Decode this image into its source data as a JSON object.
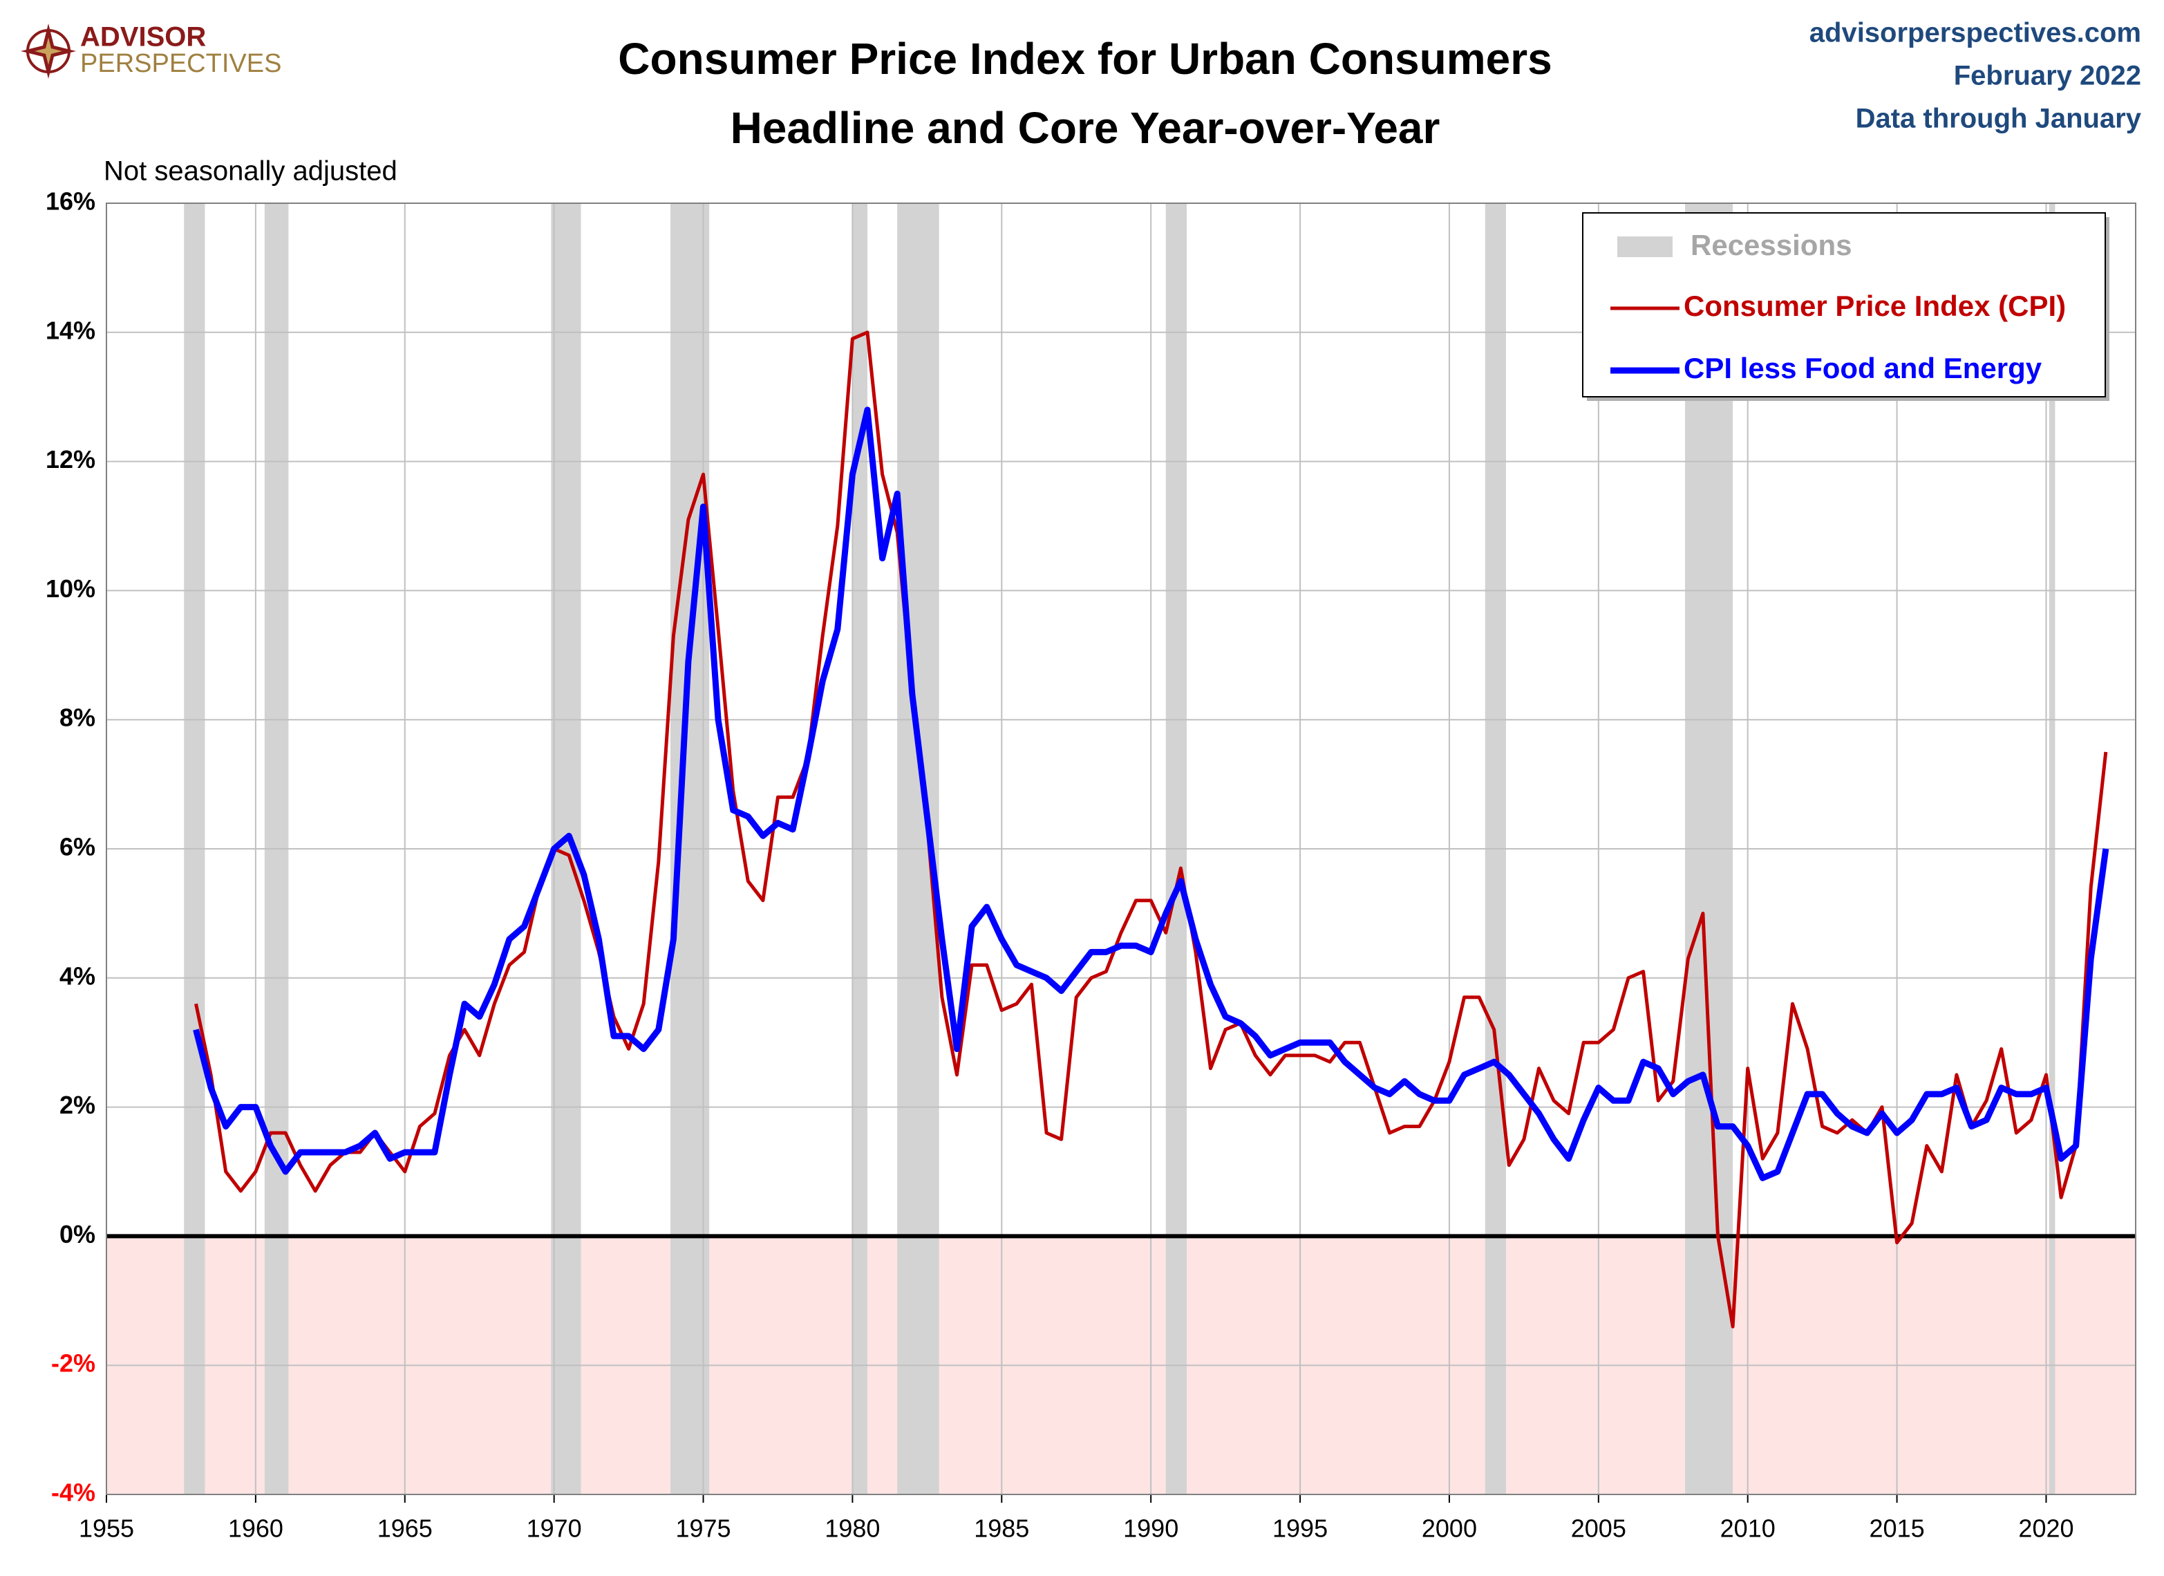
{
  "chart_data": {
    "type": "line",
    "title": "Consumer Price Index for Urban Consumers",
    "subtitle": "Headline and Core Year-over-Year",
    "logo": [
      "ADVISOR",
      "PERSPECTIVES"
    ],
    "source": [
      "advisorperspectives.com",
      "February 2022",
      "Data through January"
    ],
    "note": "Not seasonally adjusted",
    "recession_label": "Recessions",
    "recession_color": "#d3d3d3",
    "recessions": [
      [
        1957.6,
        1958.3
      ],
      [
        1960.3,
        1961.1
      ],
      [
        1969.9,
        1970.9
      ],
      [
        1973.9,
        1975.2
      ],
      [
        1980.0,
        1980.5
      ],
      [
        1981.5,
        1982.9
      ],
      [
        1990.5,
        1991.2
      ],
      [
        2001.2,
        2001.9
      ],
      [
        2007.9,
        2009.5
      ],
      [
        2020.1,
        2020.3
      ]
    ],
    "negative_fill": "#ffe4e4",
    "negative_label_color": "#ff0000",
    "grid": true,
    "legend": "upper right",
    "xlim": [
      1955,
      2023
    ],
    "xticks": [
      1955,
      1960,
      1965,
      1970,
      1975,
      1980,
      1985,
      1990,
      1995,
      2000,
      2005,
      2010,
      2015,
      2020
    ],
    "ylim": [
      -4,
      16
    ],
    "yticks": [
      {
        "value": -4,
        "label": "-4%"
      },
      {
        "value": -2,
        "label": "-2%"
      },
      {
        "value": 0,
        "label": "0%"
      },
      {
        "value": 2,
        "label": "2%"
      },
      {
        "value": 4,
        "label": "4%"
      },
      {
        "value": 6,
        "label": "6%"
      },
      {
        "value": 8,
        "label": "8%"
      },
      {
        "value": 10,
        "label": "10%"
      },
      {
        "value": 12,
        "label": "12%"
      },
      {
        "value": 14,
        "label": "14%"
      },
      {
        "value": 16,
        "label": "16%"
      }
    ],
    "x": [
      1958.0,
      1958.5,
      1959.0,
      1959.5,
      1960.0,
      1960.5,
      1961.0,
      1961.5,
      1962.0,
      1962.5,
      1963.0,
      1963.5,
      1964.0,
      1964.5,
      1965.0,
      1965.5,
      1966.0,
      1966.5,
      1967.0,
      1967.5,
      1968.0,
      1968.5,
      1969.0,
      1969.5,
      1970.0,
      1970.5,
      1971.0,
      1971.5,
      1972.0,
      1972.5,
      1973.0,
      1973.5,
      1974.0,
      1974.5,
      1975.0,
      1975.5,
      1976.0,
      1976.5,
      1977.0,
      1977.5,
      1978.0,
      1978.5,
      1979.0,
      1979.5,
      1980.0,
      1980.5,
      1981.0,
      1981.5,
      1982.0,
      1982.5,
      1983.0,
      1983.5,
      1984.0,
      1984.5,
      1985.0,
      1985.5,
      1986.0,
      1986.5,
      1987.0,
      1987.5,
      1988.0,
      1988.5,
      1989.0,
      1989.5,
      1990.0,
      1990.5,
      1991.0,
      1991.5,
      1992.0,
      1992.5,
      1993.0,
      1993.5,
      1994.0,
      1994.5,
      1995.0,
      1995.5,
      1996.0,
      1996.5,
      1997.0,
      1997.5,
      1998.0,
      1998.5,
      1999.0,
      1999.5,
      2000.0,
      2000.5,
      2001.0,
      2001.5,
      2002.0,
      2002.5,
      2003.0,
      2003.5,
      2004.0,
      2004.5,
      2005.0,
      2005.5,
      2006.0,
      2006.5,
      2007.0,
      2007.5,
      2008.0,
      2008.5,
      2009.0,
      2009.5,
      2010.0,
      2010.5,
      2011.0,
      2011.5,
      2012.0,
      2012.5,
      2013.0,
      2013.5,
      2014.0,
      2014.5,
      2015.0,
      2015.5,
      2016.0,
      2016.5,
      2017.0,
      2017.5,
      2018.0,
      2018.5,
      2019.0,
      2019.5,
      2020.0,
      2020.5,
      2021.0,
      2021.5,
      2022.0
    ],
    "series": [
      {
        "name": "Consumer Price Index (CPI)",
        "color": "#c00000",
        "width": 5,
        "values": [
          3.6,
          2.5,
          1.0,
          0.7,
          1.0,
          1.6,
          1.6,
          1.1,
          0.7,
          1.1,
          1.3,
          1.3,
          1.6,
          1.3,
          1.0,
          1.7,
          1.9,
          2.8,
          3.2,
          2.8,
          3.6,
          4.2,
          4.4,
          5.4,
          6.0,
          5.9,
          5.2,
          4.4,
          3.4,
          2.9,
          3.6,
          5.8,
          9.3,
          11.1,
          11.8,
          9.4,
          6.9,
          5.5,
          5.2,
          6.8,
          6.8,
          7.4,
          9.3,
          11.0,
          13.9,
          14.0,
          11.8,
          10.9,
          8.4,
          6.4,
          3.7,
          2.5,
          4.2,
          4.2,
          3.5,
          3.6,
          3.9,
          1.6,
          1.5,
          3.7,
          4.0,
          4.1,
          4.7,
          5.2,
          5.2,
          4.7,
          5.7,
          4.4,
          2.6,
          3.2,
          3.3,
          2.8,
          2.5,
          2.8,
          2.8,
          2.8,
          2.7,
          3.0,
          3.0,
          2.3,
          1.6,
          1.7,
          1.7,
          2.1,
          2.7,
          3.7,
          3.7,
          3.2,
          1.1,
          1.5,
          2.6,
          2.1,
          1.9,
          3.0,
          3.0,
          3.2,
          4.0,
          4.1,
          2.1,
          2.4,
          4.3,
          5.0,
          0.0,
          -1.4,
          2.6,
          1.2,
          1.6,
          3.6,
          2.9,
          1.7,
          1.6,
          1.8,
          1.6,
          2.0,
          -0.1,
          0.2,
          1.4,
          1.0,
          2.5,
          1.7,
          2.1,
          2.9,
          1.6,
          1.8,
          2.5,
          0.6,
          1.4,
          5.4,
          7.5
        ]
      },
      {
        "name": "CPI less Food and Energy",
        "color": "#0000ff",
        "width": 9,
        "values": [
          3.2,
          2.3,
          1.7,
          2.0,
          2.0,
          1.4,
          1.0,
          1.3,
          1.3,
          1.3,
          1.3,
          1.4,
          1.6,
          1.2,
          1.3,
          1.3,
          1.3,
          2.5,
          3.6,
          3.4,
          3.9,
          4.6,
          4.8,
          5.4,
          6.0,
          6.2,
          5.6,
          4.6,
          3.1,
          3.1,
          2.9,
          3.2,
          4.6,
          8.9,
          11.3,
          8.0,
          6.6,
          6.5,
          6.2,
          6.4,
          6.3,
          7.4,
          8.6,
          9.4,
          11.8,
          12.8,
          10.5,
          11.5,
          8.4,
          6.5,
          4.6,
          2.9,
          4.8,
          5.1,
          4.6,
          4.2,
          4.1,
          4.0,
          3.8,
          4.1,
          4.4,
          4.4,
          4.5,
          4.5,
          4.4,
          5.0,
          5.5,
          4.6,
          3.9,
          3.4,
          3.3,
          3.1,
          2.8,
          2.9,
          3.0,
          3.0,
          3.0,
          2.7,
          2.5,
          2.3,
          2.2,
          2.4,
          2.2,
          2.1,
          2.1,
          2.5,
          2.6,
          2.7,
          2.5,
          2.2,
          1.9,
          1.5,
          1.2,
          1.8,
          2.3,
          2.1,
          2.1,
          2.7,
          2.6,
          2.2,
          2.4,
          2.5,
          1.7,
          1.7,
          1.4,
          0.9,
          1.0,
          1.6,
          2.2,
          2.2,
          1.9,
          1.7,
          1.6,
          1.9,
          1.6,
          1.8,
          2.2,
          2.2,
          2.3,
          1.7,
          1.8,
          2.3,
          2.2,
          2.2,
          2.3,
          1.2,
          1.4,
          4.3,
          6.0
        ]
      }
    ]
  }
}
